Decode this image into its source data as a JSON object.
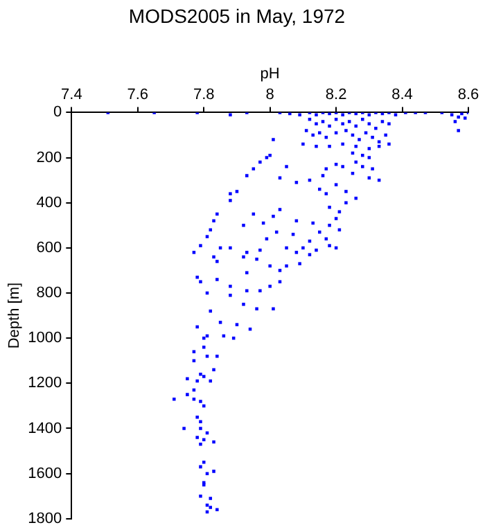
{
  "chart_data": {
    "type": "scatter",
    "title": "MODS2005 in May, 1972",
    "xlabel": "pH",
    "ylabel": "Depth [m]",
    "xlim": [
      7.4,
      8.6
    ],
    "xticks": [
      7.4,
      7.6,
      7.8,
      8,
      8.2,
      8.4,
      8.6
    ],
    "ylim": [
      1800,
      0
    ],
    "yticks": [
      0,
      200,
      400,
      600,
      800,
      1000,
      1200,
      1400,
      1600,
      1800
    ],
    "grid": false,
    "legend": false,
    "marker": "square",
    "series": [
      {
        "color": "#0000ff",
        "x": [
          7.51,
          7.65,
          7.78,
          7.88,
          7.93,
          8.03,
          8.06,
          8.09,
          8.12,
          8.14,
          8.16,
          8.18,
          8.2,
          8.22,
          8.24,
          8.26,
          8.28,
          8.3,
          8.32,
          8.34,
          8.36,
          8.38,
          8.41,
          8.44,
          8.47,
          8.52,
          8.55,
          8.57,
          8.58,
          8.6,
          8.59,
          8.56,
          8.57,
          8.12,
          8.14,
          8.16,
          8.18,
          8.2,
          8.22,
          8.24,
          8.26,
          8.28,
          8.3,
          8.32,
          8.34,
          8.36,
          8.11,
          8.13,
          8.15,
          8.17,
          8.2,
          8.23,
          8.25,
          8.27,
          8.29,
          8.31,
          8.33,
          8.35,
          8.1,
          8.14,
          8.18,
          8.22,
          8.26,
          8.3,
          8.33,
          8.36,
          8.25,
          8.28,
          8.3,
          8.26,
          8.22,
          8.28,
          8.31,
          8.25,
          8.3,
          8.33,
          8.2,
          8.17,
          8.16,
          8.12,
          8.08,
          8.03,
          8.05,
          8.01,
          8.0,
          7.99,
          7.97,
          7.95,
          7.93,
          7.88,
          7.88,
          7.9,
          7.84,
          7.83,
          7.82,
          7.81,
          7.79,
          7.77,
          8.15,
          8.17,
          8.2,
          8.23,
          8.26,
          8.23,
          8.18,
          8.21,
          8.2,
          8.18,
          8.21,
          8.13,
          8.15,
          8.17,
          8.12,
          8.08,
          8.03,
          8.01,
          7.95,
          7.98,
          7.92,
          8.02,
          8.07,
          7.99,
          8.1,
          8.14,
          8.18,
          8.2,
          7.85,
          7.88,
          7.93,
          7.97,
          8.05,
          8.08,
          8.12,
          7.83,
          7.84,
          7.92,
          7.96,
          8.0,
          8.05,
          8.09,
          8.03,
          7.93,
          7.78,
          7.79,
          7.84,
          7.88,
          7.93,
          7.97,
          7.81,
          7.88,
          8.0,
          8.03,
          7.92,
          7.96,
          7.82,
          8.01,
          7.85,
          7.78,
          7.9,
          7.94,
          7.81,
          7.86,
          7.8,
          7.89,
          7.8,
          7.77,
          7.81,
          7.77,
          7.84,
          7.83,
          7.79,
          7.8,
          7.75,
          7.78,
          7.82,
          7.77,
          7.75,
          7.71,
          7.77,
          7.79,
          7.8,
          7.78,
          7.79,
          7.74,
          7.79,
          7.81,
          7.78,
          7.8,
          7.83,
          7.79,
          7.8,
          7.79,
          7.83,
          7.81,
          7.8,
          7.8,
          7.79,
          7.82,
          7.81,
          7.82,
          7.84,
          7.81
        ],
        "values": [
          0,
          0,
          0,
          10,
          0,
          0,
          5,
          10,
          0,
          10,
          0,
          5,
          0,
          10,
          0,
          5,
          0,
          10,
          0,
          5,
          0,
          10,
          0,
          0,
          0,
          0,
          10,
          20,
          5,
          0,
          25,
          40,
          80,
          30,
          50,
          40,
          60,
          30,
          50,
          40,
          60,
          30,
          50,
          70,
          40,
          50,
          80,
          100,
          90,
          110,
          90,
          80,
          100,
          120,
          90,
          110,
          130,
          100,
          140,
          150,
          150,
          140,
          150,
          160,
          150,
          140,
          180,
          190,
          200,
          220,
          240,
          240,
          250,
          270,
          290,
          300,
          230,
          250,
          280,
          300,
          310,
          290,
          240,
          120,
          190,
          200,
          220,
          250,
          280,
          360,
          390,
          350,
          450,
          480,
          520,
          550,
          590,
          620,
          340,
          360,
          320,
          350,
          380,
          400,
          420,
          440,
          470,
          500,
          520,
          490,
          530,
          560,
          570,
          480,
          430,
          460,
          450,
          490,
          500,
          530,
          540,
          560,
          600,
          610,
          590,
          600,
          600,
          600,
          620,
          610,
          600,
          620,
          630,
          640,
          660,
          640,
          650,
          680,
          680,
          670,
          700,
          710,
          730,
          750,
          740,
          770,
          790,
          790,
          800,
          810,
          770,
          750,
          850,
          870,
          880,
          870,
          930,
          950,
          940,
          960,
          990,
          990,
          1000,
          1000,
          1040,
          1060,
          1080,
          1100,
          1080,
          1140,
          1160,
          1170,
          1180,
          1190,
          1190,
          1230,
          1250,
          1270,
          1270,
          1280,
          1300,
          1350,
          1370,
          1400,
          1400,
          1420,
          1440,
          1450,
          1460,
          1470,
          1550,
          1570,
          1590,
          1600,
          1640,
          1650,
          1700,
          1710,
          1740,
          1750,
          1760,
          1770
        ]
      }
    ]
  }
}
